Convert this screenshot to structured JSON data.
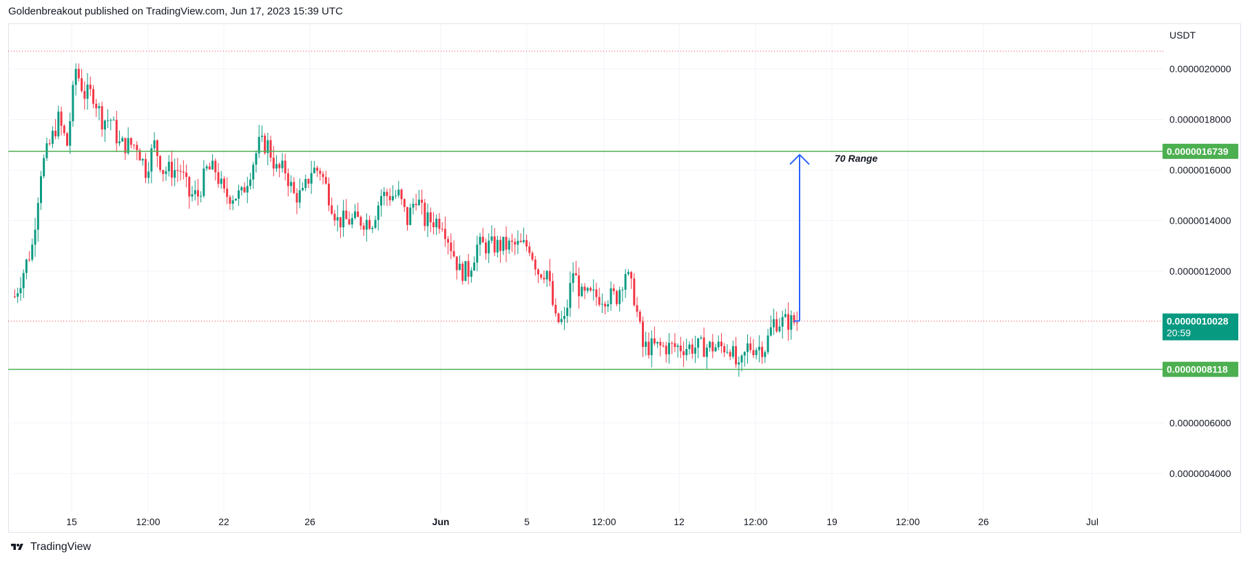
{
  "header": {
    "text": "Goldenbreakout published on TradingView.com, Jun 17, 2023 15:39 UTC"
  },
  "footer": {
    "brand": "TradingView"
  },
  "colors": {
    "up": "#089981",
    "down": "#f23645",
    "level": "#4caf50",
    "arrow": "#2962ff",
    "grid": "#f0f3fa",
    "dotted": "#f23645",
    "last_price_bg": "#089981",
    "level_label_bg": "#4caf50"
  },
  "chart_data": {
    "type": "candlestick",
    "currency": "USDT",
    "x_ticks": [
      "15",
      "12:00",
      "22",
      "26",
      "Jun",
      "5",
      "12:00",
      "12",
      "12:00",
      "19",
      "12:00",
      "26",
      "Jul"
    ],
    "y_ticks": [
      "0.0000020000",
      "0.0000018000",
      "0.0000016000",
      "0.0000014000",
      "0.0000012000",
      "0.0000006000",
      "0.0000004000"
    ],
    "y_range": [
      2.5e-07,
      2.1e-06
    ],
    "levels": [
      {
        "value": 1.6739e-06,
        "label": "0.0000016739"
      },
      {
        "value": 8.118e-07,
        "label": "0.0000008118"
      }
    ],
    "last_price": {
      "value": 1.0028e-06,
      "label": "0.0000010028",
      "countdown": "20:59"
    },
    "high_marker": 2.07e-06,
    "annotation": {
      "text": "70 Range",
      "from": 1.0028e-06,
      "to": 1.6739e-06
    },
    "closes_path": [
      1.1e-06,
      1.2e-06,
      1.3e-06,
      1.6e-06,
      1.7e-06,
      1.8e-06,
      1.7e-06,
      2e-06,
      1.9e-06,
      1.9e-06,
      1.8e-06,
      1.8e-06,
      1.7e-06,
      1.7e-06,
      1.7e-06,
      1.6e-06,
      1.7e-06,
      1.6e-06,
      1.6e-06,
      1.6e-06,
      1.5e-06,
      1.5e-06,
      1.6e-06,
      1.6e-06,
      1.5e-06,
      1.5e-06,
      1.5e-06,
      1.6e-06,
      1.7e-06,
      1.7e-06,
      1.6e-06,
      1.6e-06,
      1.5e-06,
      1.5e-06,
      1.6e-06,
      1.6e-06,
      1.5e-06,
      1.4e-06,
      1.4e-06,
      1.4e-06,
      1.4e-06,
      1.4e-06,
      1.5e-06,
      1.5e-06,
      1.5e-06,
      1.4e-06,
      1.5e-06,
      1.4e-06,
      1.4e-06,
      1.4e-06,
      1.3e-06,
      1.2e-06,
      1.2e-06,
      1.3e-06,
      1.3e-06,
      1.3e-06,
      1.3e-06,
      1.3e-06,
      1.3e-06,
      1.3e-06,
      1.2e-06,
      1.2e-06,
      1e-06,
      1e-06,
      1.2e-06,
      1.1e-06,
      1.1e-06,
      1.1e-06,
      1.1e-06,
      1.1e-06,
      1.2e-06,
      1.1e-06,
      9e-07,
      9e-07,
      9e-07,
      9e-07,
      9e-07,
      9e-07,
      9e-07,
      9e-07,
      9e-07,
      9e-07,
      9e-07,
      8e-07,
      9e-07,
      9e-07,
      9e-07,
      1e-06,
      1e-06,
      1e-06
    ]
  }
}
